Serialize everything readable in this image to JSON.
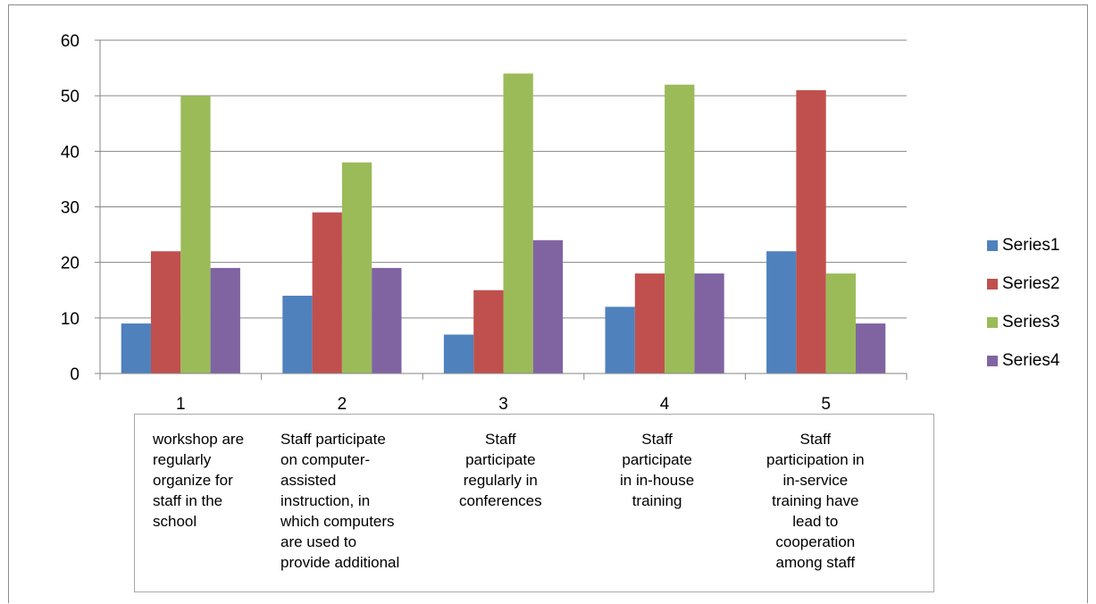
{
  "chart_data": {
    "type": "bar",
    "categories": [
      "1",
      "2",
      "3",
      "4",
      "5"
    ],
    "series": [
      {
        "name": "Series1",
        "values": [
          9,
          14,
          7,
          12,
          22
        ],
        "color": "#4F81BD"
      },
      {
        "name": "Series2",
        "values": [
          22,
          29,
          15,
          18,
          51
        ],
        "color": "#C0504D"
      },
      {
        "name": "Series3",
        "values": [
          50,
          38,
          54,
          52,
          18
        ],
        "color": "#9BBB59"
      },
      {
        "name": "Series4",
        "values": [
          19,
          19,
          24,
          18,
          9
        ],
        "color": "#8064A2"
      }
    ],
    "ylim": [
      0,
      60
    ],
    "yticks": [
      "0",
      "10",
      "20",
      "30",
      "40",
      "50",
      "60"
    ],
    "grid": true,
    "legend_position": "right",
    "title": "",
    "xlabel": "",
    "ylabel": ""
  },
  "notes": [
    "workshop are\nregularly\norganize for\nstaff in the\nschool",
    "Staff participate\non computer-\nassisted\ninstruction, in\nwhich computers\nare used to\nprovide additional",
    "Staff\nparticipate\nregularly in\nconferences",
    "Staff\nparticipate\nin in-house\ntraining",
    "Staff\nparticipation in\nin-service\ntraining have\nlead to\ncooperation\namong staff"
  ]
}
